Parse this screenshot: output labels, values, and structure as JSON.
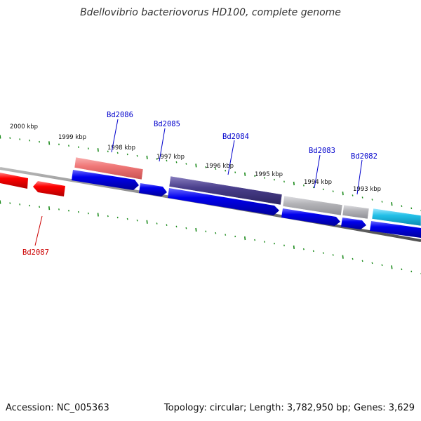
{
  "title": "Bdellovibrio bacteriovorus HD100, complete genome",
  "footer": {
    "accession": "Accession: NC_005363",
    "summary": "Topology: circular; Length: 3,782,950 bp; Genes: 3,629"
  },
  "colors": {
    "backbone": "#7a7a7a",
    "tick": "#1a8a1a",
    "gene_label": "#0000cc",
    "gene_label_red": "#cc0000"
  },
  "scale_labels": [
    "2000 kbp",
    "1999 kbp",
    "1998 kbp",
    "1997 kbp",
    "1996 kbp",
    "1995 kbp",
    "1994 kbp",
    "1993 kbp"
  ],
  "gene_labels": [
    "Bd2086",
    "Bd2085",
    "Bd2084",
    "Bd2083",
    "Bd2082",
    "Bd2087"
  ],
  "feature_track_colors": [
    "#f07878",
    "#4a3f8c",
    "#b4b4b8",
    "#22c0e8"
  ],
  "gene_colors": {
    "forward": "#0000ee",
    "reverse": "#ff0000"
  }
}
